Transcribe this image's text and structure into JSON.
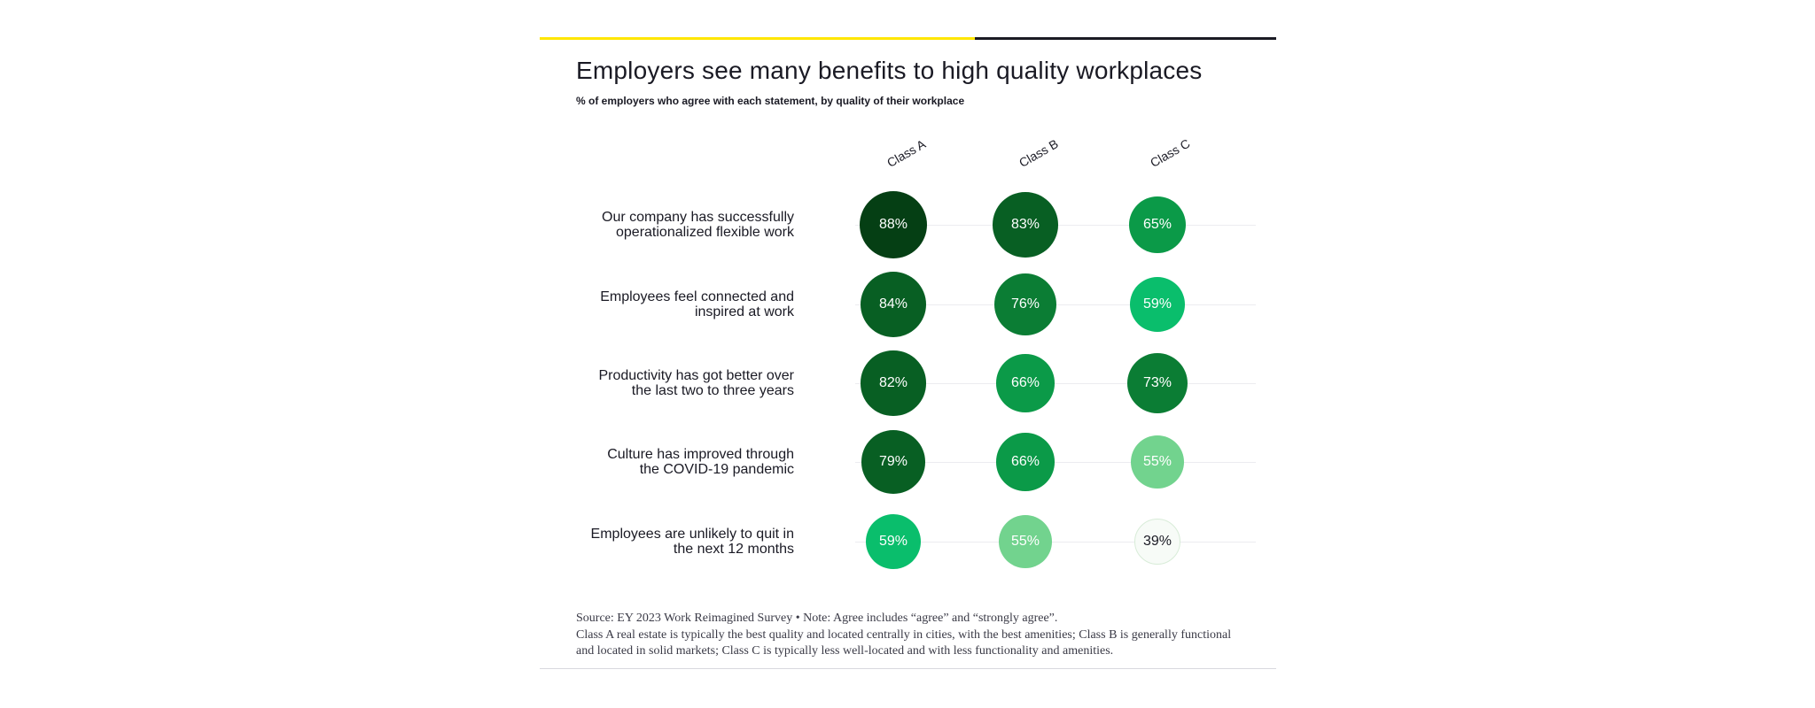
{
  "title": "Employers see many benefits to high quality workplaces",
  "subtitle": "% of employers who agree with each statement, by quality of their workplace",
  "source": {
    "line1": "Source: EY 2023 Work Reimagined Survey • Note: Agree includes “agree” and “strongly agree”.",
    "line2": "Class A real estate is typically the best quality and located centrally in cities, with the best amenities; Class B is generally functional",
    "line3": "and located in solid markets; Class C is typically less well-located and with less functionality and amenities."
  },
  "colors": {
    "accent_yellow": "#ffe600",
    "dark_rule": "#1a1a24",
    "scale": [
      "#f7fbf7",
      "#9de0a8",
      "#72d38e",
      "#0abe6c",
      "#0b9a48",
      "#0b7d34",
      "#085f23",
      "#053f14"
    ]
  },
  "chart_data": {
    "type": "bubble-matrix",
    "title": "Employers see many benefits to high quality workplaces",
    "subtitle": "% of employers who agree with each statement, by quality of their workplace",
    "columns": [
      "Class A",
      "Class B",
      "Class C"
    ],
    "rows": [
      {
        "label": "Our company has successfully operationalized flexible work",
        "label_lines": [
          "Our company has successfully",
          "operationalized flexible work"
        ],
        "values": [
          88,
          83,
          65
        ]
      },
      {
        "label": "Employees feel connected and inspired at work",
        "label_lines": [
          "Employees feel connected and",
          "inspired at work"
        ],
        "values": [
          84,
          76,
          59
        ]
      },
      {
        "label": "Productivity has got better over the last two to three years",
        "label_lines": [
          "Productivity has got better over",
          "the last two to three years"
        ],
        "values": [
          82,
          66,
          73
        ]
      },
      {
        "label": "Culture has improved through the COVID-19 pandemic",
        "label_lines": [
          "Culture has improved through",
          "the COVID-19 pandemic"
        ],
        "values": [
          79,
          66,
          55
        ]
      },
      {
        "label": "Employees are unlikely to quit in the next 12 months",
        "label_lines": [
          "Employees are unlikely to quit in",
          "the next 12 months"
        ],
        "values": [
          59,
          55,
          39
        ]
      }
    ],
    "value_suffix": "%",
    "value_range": [
      39,
      88
    ],
    "grid": true,
    "legend": "none"
  }
}
